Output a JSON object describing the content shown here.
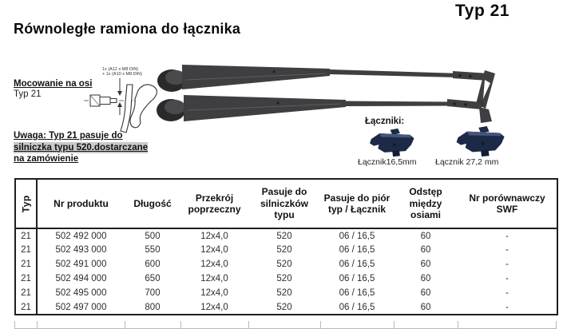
{
  "page": {
    "type_label": "Typ 21",
    "title": "Równoległe ramiona do łącznika"
  },
  "left_panel": {
    "mount_heading": "Mocowanie na osi",
    "mount_sub": "Typ 21",
    "drawing_note_line1": "1x (A12 x M8 DIN)",
    "drawing_note_line2": "+ 1x (A10 x M8 DIN)",
    "note_line1": "Uwaga: Typ 21 pasuje do",
    "note_line2": "silniczka typu 520.dostarczane",
    "note_line3": "na zamówienie"
  },
  "connectors": {
    "heading": "Łączniki:",
    "items": [
      {
        "label": "Łącznik16,5mm"
      },
      {
        "label": "Łącznik 27,2 mm"
      }
    ]
  },
  "table": {
    "headers": [
      "Typ",
      "Nr produktu",
      "Długość",
      "Przekrój poprzeczny",
      "Pasuje do silniczków typu",
      "Pasuje do piór typ / Łącznik",
      "Odstęp między osiami",
      "Nr porównawczy SWF"
    ],
    "rows": [
      [
        "21",
        "502 492 000",
        "500",
        "12x4,0",
        "520",
        "06 / 16,5",
        "60",
        "-"
      ],
      [
        "21",
        "502 493 000",
        "550",
        "12x4,0",
        "520",
        "06 / 16,5",
        "60",
        "-"
      ],
      [
        "21",
        "502 491 000",
        "600",
        "12x4,0",
        "520",
        "06 / 16,5",
        "60",
        "-"
      ],
      [
        "21",
        "502 494 000",
        "650",
        "12x4,0",
        "520",
        "06 / 16,5",
        "60",
        "-"
      ],
      [
        "21",
        "502 495 000",
        "700",
        "12x4,0",
        "520",
        "06 / 16,5",
        "60",
        "-"
      ],
      [
        "21",
        "502 497 000",
        "800",
        "12x4,0",
        "520",
        "06 / 16,5",
        "60",
        "-"
      ]
    ]
  },
  "colors": {
    "arm_body": "#3f3f41",
    "arm_cap": "#2a2a2c",
    "connector_body": "#1c2947",
    "connector_top": "#45567c",
    "connector_stub": "#121d35",
    "table_border": "#1f1f1f",
    "note_highlight": "#c9c9c9"
  }
}
